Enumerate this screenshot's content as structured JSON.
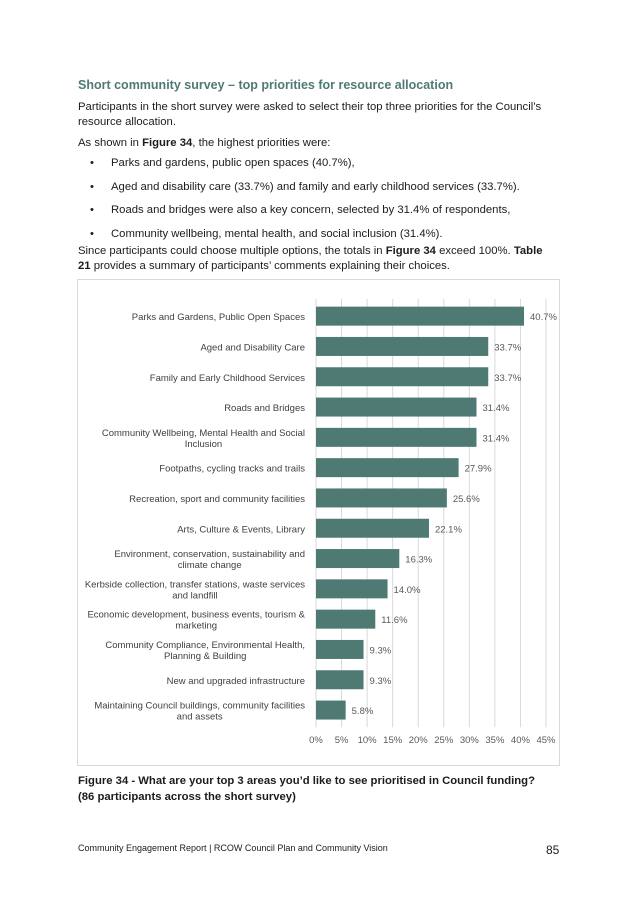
{
  "heading": "Short community survey – top priorities for resource allocation",
  "intro": "Participants in the short survey were asked to select their top three priorities for the Council’s resource allocation.",
  "shown_prefix": "As shown in ",
  "shown_ref": "Figure 34",
  "shown_suffix": ", the highest priorities were:",
  "bullets": [
    "Parks and gardens, public open spaces (40.7%),",
    "Aged and disability care (33.7%) and family and early childhood services (33.7%).",
    "Roads and bridges were also a key concern, selected by 31.4% of respondents,",
    "Community wellbeing, mental health, and social inclusion (31.4%)."
  ],
  "summary_part1": "Since participants could choose multiple options, the totals in ",
  "summary_ref1": "Figure 34",
  "summary_part2": " exceed 100%. ",
  "summary_ref2": "Table 21",
  "summary_part3": " provides a summary of participants’ comments explaining their choices.",
  "chart_data": {
    "type": "bar",
    "orientation": "horizontal",
    "categories": [
      [
        "Parks and Gardens, Public Open Spaces"
      ],
      [
        "Aged and Disability Care"
      ],
      [
        "Family and Early Childhood Services"
      ],
      [
        "Roads and Bridges"
      ],
      [
        "Community Wellbeing, Mental Health and Social",
        "Inclusion"
      ],
      [
        "Footpaths, cycling tracks and trails"
      ],
      [
        "Recreation, sport and community facilities"
      ],
      [
        "Arts, Culture & Events, Library"
      ],
      [
        "Environment, conservation, sustainability and",
        "climate change"
      ],
      [
        "Kerbside collection, transfer stations, waste services",
        "and landfill"
      ],
      [
        "Economic development, business events, tourism &",
        "marketing"
      ],
      [
        "Community Compliance, Environmental Health,",
        "Planning & Building"
      ],
      [
        "New and upgraded infrastructure"
      ],
      [
        "Maintaining Council buildings, community facilities",
        "and assets"
      ]
    ],
    "values": [
      40.7,
      33.7,
      33.7,
      31.4,
      31.4,
      27.9,
      25.6,
      22.1,
      16.3,
      14.0,
      11.6,
      9.3,
      9.3,
      5.8
    ],
    "value_labels": [
      "40.7%",
      "33.7%",
      "33.7%",
      "31.4%",
      "31.4%",
      "27.9%",
      "25.6%",
      "22.1%",
      "16.3%",
      "14.0%",
      "11.6%",
      "9.3%",
      "9.3%",
      "5.8%"
    ],
    "xlim": [
      0,
      45
    ],
    "xticks": [
      0,
      5,
      10,
      15,
      20,
      25,
      30,
      35,
      40,
      45
    ],
    "xtick_labels": [
      "0%",
      "5%",
      "10%",
      "15%",
      "20%",
      "25%",
      "30%",
      "35%",
      "40%",
      "45%"
    ],
    "grid": true,
    "bar_color": "#4f7a74"
  },
  "caption": "Figure 34 - What are your top 3 areas you’d like to see prioritised in Council funding? (86 participants across the short survey)",
  "footer_left": "Community Engagement Report | RCOW Council Plan and Community Vision",
  "page_number": "85"
}
